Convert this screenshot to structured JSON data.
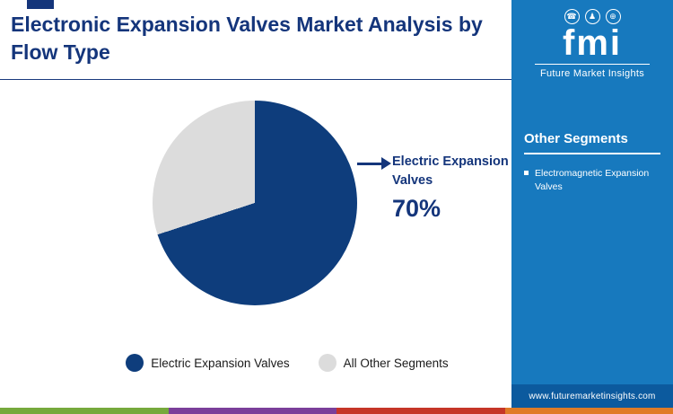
{
  "header": {
    "title": "Electronic Expansion Valves Market Analysis by Flow Type"
  },
  "chart_data": {
    "type": "pie",
    "title": "Electronic Expansion Valves Market Analysis by Flow Type",
    "labels": [
      "Electric Expansion Valves",
      "All Other Segments"
    ],
    "values": [
      70,
      30
    ],
    "colors": [
      "#0e3d7c",
      "#dcdcdc"
    ],
    "legend_position": "bottom",
    "callout": {
      "label": "Electric Expansion Valves",
      "value": 70,
      "value_text": "70%"
    }
  },
  "legend": [
    {
      "label": "Electric Expansion Valves",
      "color": "#0e3d7c"
    },
    {
      "label": "All Other Segments",
      "color": "#dcdcdc"
    }
  ],
  "sidebar": {
    "background": "#1779be",
    "logo": {
      "text": "fmi",
      "tagline": "Future Market Insights",
      "glyphs": [
        "☎",
        "♟",
        "⊕"
      ]
    },
    "heading": "Other Segments",
    "items": [
      "Electromagnetic Expansion Valves"
    ],
    "website": "www.futuremarketinsights.com"
  },
  "footer": {
    "stripe_colors": [
      "#76a93c",
      "#7b3f9a",
      "#c63527",
      "#e07b27"
    ]
  },
  "accent_colors": {
    "title_navy": "#14357b",
    "pie_navy": "#0e3d7c",
    "pie_gray": "#dcdcdc",
    "sidebar_blue": "#1779be",
    "sidebar_footer_blue": "#0c5a9e"
  }
}
